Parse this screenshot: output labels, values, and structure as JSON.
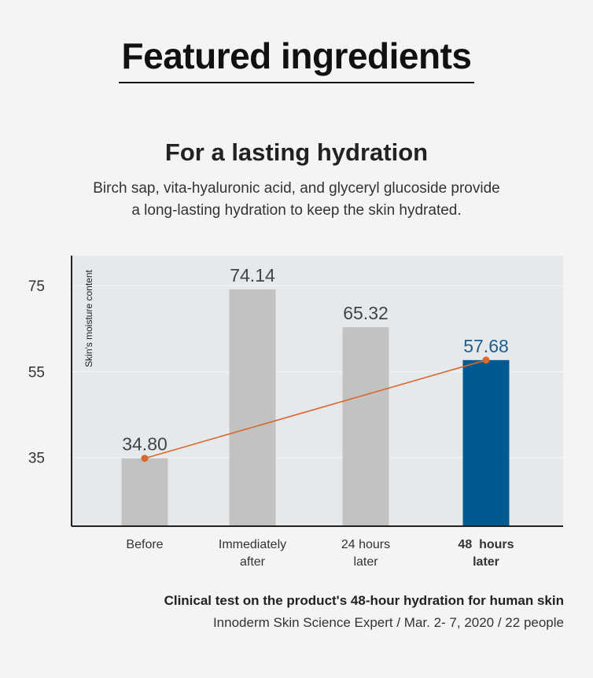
{
  "header": {
    "title": "Featured ingredients",
    "subtitle": "For a lasting hydration",
    "description_lines": [
      "Birch sap, vita-hyaluronic acid, and glyceryl glucoside provide",
      "a long-lasting hydration to keep the skin hydrated."
    ]
  },
  "chart_data": {
    "type": "bar",
    "ylabel": "Skin's moisture content",
    "yticks": [
      35,
      55,
      75
    ],
    "ylim": [
      19,
      82
    ],
    "categories": [
      [
        "Before"
      ],
      [
        "Immediately",
        "after"
      ],
      [
        "24 hours",
        "later"
      ],
      [
        "48  hours",
        "later"
      ]
    ],
    "values": [
      34.8,
      74.14,
      65.32,
      57.68
    ],
    "value_labels": [
      "34.80",
      "74.14",
      "65.32",
      "57.68"
    ],
    "highlight_index": 3,
    "trend_line": {
      "from_index": 0,
      "to_index": 3,
      "values": [
        34.8,
        57.68
      ]
    },
    "colors": {
      "bar": "#c2c2c2",
      "highlight_bar": "#005a92",
      "highlight_label": "#1f5c8c",
      "label": "#444444",
      "trend": "#d9682a",
      "plot_bg": "#e6e9ec",
      "axis": "#222222"
    }
  },
  "caption": {
    "line1": "Clinical test on the product's 48-hour hydration for human skin",
    "line2": "Innoderm Skin Science Expert / Mar. 2- 7, 2020 / 22 people"
  }
}
